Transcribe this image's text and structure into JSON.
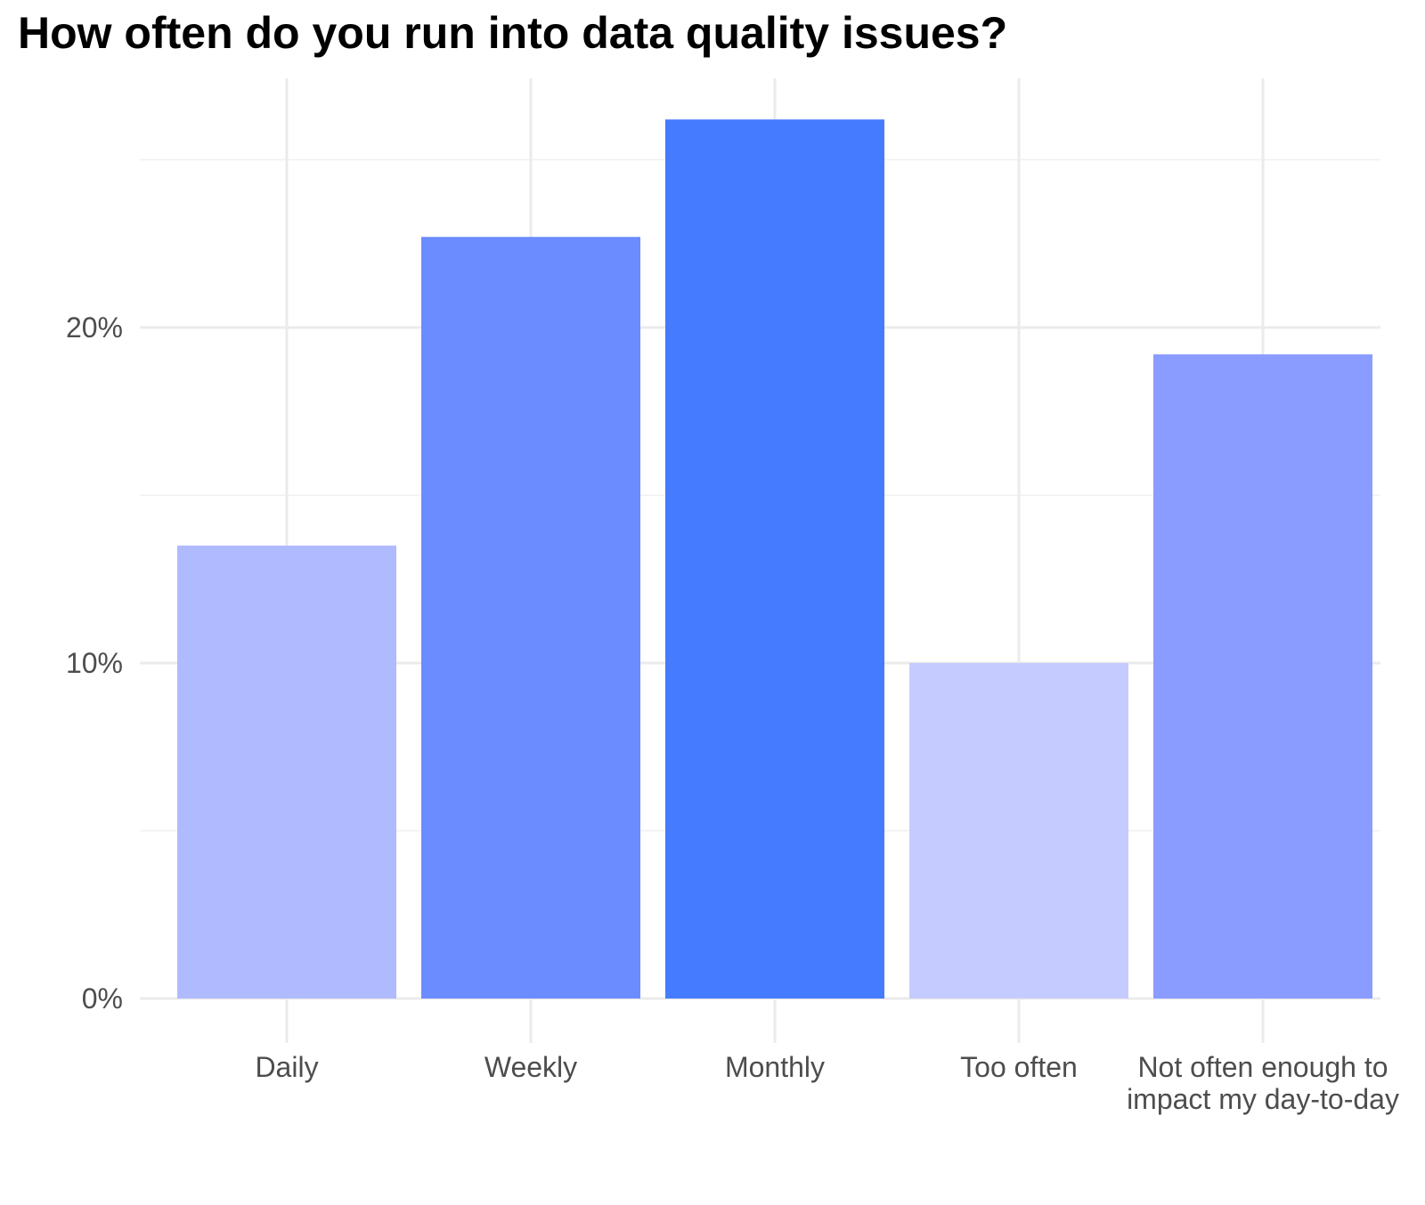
{
  "chart_data": {
    "type": "bar",
    "title": "How often do you run into data quality issues?",
    "xlabel": "",
    "ylabel": "",
    "categories": [
      "Daily",
      "Weekly",
      "Monthly",
      "Too often",
      "Not often enough to impact my day-to-day"
    ],
    "category_label_lines": [
      [
        "Daily"
      ],
      [
        "Weekly"
      ],
      [
        "Monthly"
      ],
      [
        "Too often"
      ],
      [
        "Not often enough to",
        "impact my day-to-day"
      ]
    ],
    "values": [
      13.5,
      22.7,
      26.2,
      10.0,
      19.2
    ],
    "bar_colors": [
      "#b0baff",
      "#6b8cff",
      "#447bff",
      "#c6cbff",
      "#8a9cff"
    ],
    "ylim": [
      0,
      27.5
    ],
    "yticks": [
      0,
      10,
      20
    ],
    "ytick_labels": [
      "0%",
      "10%",
      "20%"
    ],
    "y_minor_ticks": [
      5,
      15,
      25
    ],
    "grid": true,
    "legend": "none"
  }
}
